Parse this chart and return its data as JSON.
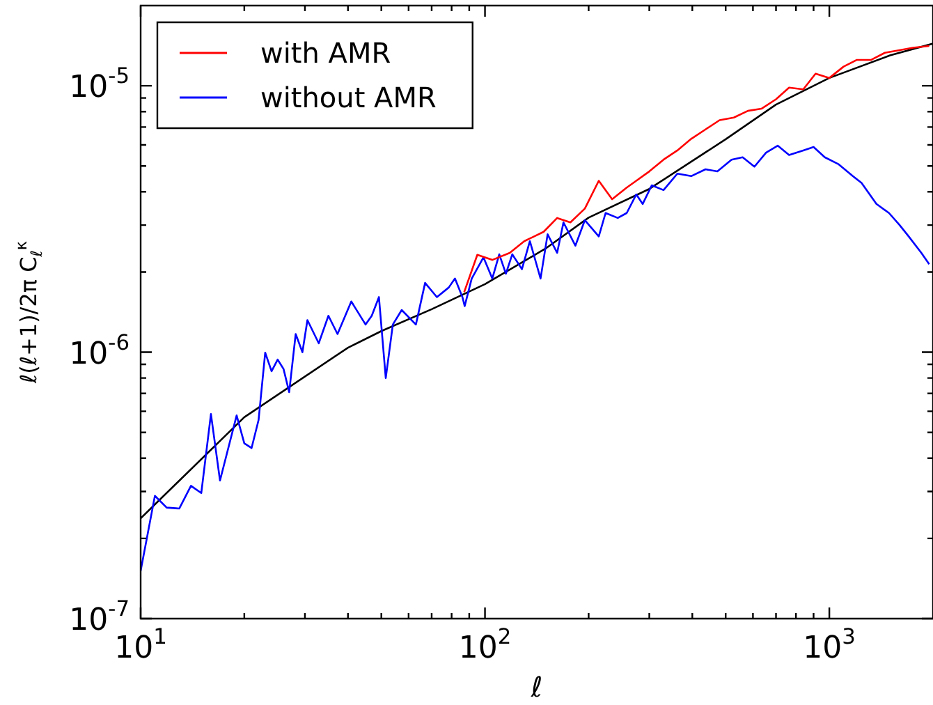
{
  "chart_data": {
    "type": "line",
    "xlabel": "ℓ",
    "ylabel": "ℓ(ℓ+1)/2π C$_{ℓ}$$^{κ}$",
    "log": "xy",
    "grid": false,
    "legend": "top left",
    "marker": "none",
    "line_style": "solid",
    "xlim": [
      10,
      2000
    ],
    "ylim": [
      1e-07,
      2e-05
    ],
    "xticks": [
      {
        "value": 10,
        "label": "10$^{1}$"
      },
      {
        "value": 20,
        "label": null
      },
      {
        "value": 30,
        "label": null
      },
      {
        "value": 40,
        "label": null
      },
      {
        "value": 50,
        "label": null
      },
      {
        "value": 60,
        "label": null
      },
      {
        "value": 70,
        "label": null
      },
      {
        "value": 80,
        "label": null
      },
      {
        "value": 90,
        "label": null
      },
      {
        "value": 100,
        "label": "10$^{2}$"
      },
      {
        "value": 200,
        "label": null
      },
      {
        "value": 300,
        "label": null
      },
      {
        "value": 400,
        "label": null
      },
      {
        "value": 500,
        "label": null
      },
      {
        "value": 600,
        "label": null
      },
      {
        "value": 700,
        "label": null
      },
      {
        "value": 800,
        "label": null
      },
      {
        "value": 900,
        "label": null
      },
      {
        "value": 1000,
        "label": "10$^{3}$"
      }
    ],
    "yticks": [
      {
        "value": 1e-07,
        "label": "10$^{-7}$"
      },
      {
        "value": 2e-07,
        "label": null
      },
      {
        "value": 3e-07,
        "label": null
      },
      {
        "value": 4e-07,
        "label": null
      },
      {
        "value": 5e-07,
        "label": null
      },
      {
        "value": 6e-07,
        "label": null
      },
      {
        "value": 7e-07,
        "label": null
      },
      {
        "value": 8e-07,
        "label": null
      },
      {
        "value": 9e-07,
        "label": null
      },
      {
        "value": 1e-06,
        "label": "10$^{-6}$"
      },
      {
        "value": 2e-06,
        "label": null
      },
      {
        "value": 3e-06,
        "label": null
      },
      {
        "value": 4e-06,
        "label": null
      },
      {
        "value": 5e-06,
        "label": null
      },
      {
        "value": 6e-06,
        "label": null
      },
      {
        "value": 7e-06,
        "label": null
      },
      {
        "value": 8e-06,
        "label": null
      },
      {
        "value": 9e-06,
        "label": null
      },
      {
        "value": 1e-05,
        "label": "10$^{-5}$"
      }
    ],
    "series": [
      {
        "name": "with AMR",
        "color": "#ff0000",
        "x": [
          87,
          95,
          105,
          118,
          130,
          148,
          162,
          177,
          195,
          214,
          234,
          258,
          275,
          300,
          330,
          362,
          397,
          437,
          480,
          528,
          580,
          635,
          700,
          764,
          840,
          912,
          1000,
          1100,
          1200,
          1320,
          1450,
          1600,
          1750,
          1950
        ],
        "values": [
          1.68e-06,
          2.32e-06,
          2.22e-06,
          2.36e-06,
          2.61e-06,
          2.83e-06,
          3.19e-06,
          3.07e-06,
          3.46e-06,
          4.4e-06,
          3.75e-06,
          4.15e-06,
          4.4e-06,
          4.77e-06,
          5.28e-06,
          5.72e-06,
          6.32e-06,
          6.86e-06,
          7.43e-06,
          7.6e-06,
          8.05e-06,
          8.2e-06,
          8.9e-06,
          9.84e-06,
          9.7e-06,
          1.11e-05,
          1.07e-05,
          1.18e-05,
          1.25e-05,
          1.25e-05,
          1.33e-05,
          1.36e-05,
          1.39e-05,
          1.41e-05
        ]
      },
      {
        "name": "without AMR",
        "color": "#0000ff",
        "x": [
          10,
          11,
          11.9,
          12.95,
          14,
          15,
          16,
          17,
          19,
          20,
          21,
          22,
          23,
          24,
          25,
          26,
          27,
          28.2,
          29.5,
          30.5,
          32.9,
          35.1,
          37.3,
          40.9,
          45,
          46.9,
          49.2,
          51.5,
          54,
          57.3,
          63,
          67,
          72.5,
          78.5,
          81.8,
          86,
          87.3,
          91.5,
          99,
          105,
          110,
          115,
          120,
          128,
          135,
          145,
          152,
          162,
          169,
          183,
          195,
          214,
          224,
          243,
          258,
          275,
          287,
          305,
          330,
          362,
          397,
          437,
          473,
          520,
          560,
          606,
          655,
          708,
          764,
          840,
          900,
          970,
          1065,
          1170,
          1240,
          1370,
          1490,
          1600,
          1700,
          1850,
          1950
        ],
        "values": [
          1.51e-07,
          2.89e-07,
          2.61e-07,
          2.59e-07,
          3.15e-07,
          2.96e-07,
          5.86e-07,
          3.3e-07,
          5.79e-07,
          4.55e-07,
          4.37e-07,
          5.56e-07,
          9.96e-07,
          8.48e-07,
          9.38e-07,
          8.65e-07,
          7.08e-07,
          1.17e-06,
          1e-06,
          1.32e-06,
          1.08e-06,
          1.37e-06,
          1.17e-06,
          1.55e-06,
          1.27e-06,
          1.37e-06,
          1.61e-06,
          8e-07,
          1.27e-06,
          1.44e-06,
          1.27e-06,
          1.82e-06,
          1.61e-06,
          1.75e-06,
          1.89e-06,
          1.61e-06,
          1.49e-06,
          1.89e-06,
          2.27e-06,
          1.89e-06,
          2.33e-06,
          1.97e-06,
          2.33e-06,
          2.05e-06,
          2.61e-06,
          1.89e-06,
          2.77e-06,
          2.36e-06,
          3.07e-06,
          2.51e-06,
          3.13e-06,
          2.72e-06,
          3.33e-06,
          3.19e-06,
          3.33e-06,
          3.91e-06,
          3.6e-06,
          4.23e-06,
          4.06e-06,
          4.68e-06,
          4.58e-06,
          4.86e-06,
          4.77e-06,
          5.28e-06,
          5.39e-06,
          4.97e-06,
          5.61e-06,
          5.96e-06,
          5.5e-06,
          5.72e-06,
          5.89e-06,
          5.39e-06,
          5.07e-06,
          4.58e-06,
          4.32e-06,
          3.6e-06,
          3.33e-06,
          3e-06,
          2.72e-06,
          2.36e-06,
          2.14e-06
        ]
      },
      {
        "color": "#000000",
        "x": [
          10,
          20,
          40,
          50,
          70,
          100,
          150,
          200,
          300,
          500,
          700,
          1000,
          1500,
          2000
        ],
        "values": [
          2.38e-07,
          5.7e-07,
          1.04e-06,
          1.2e-06,
          1.45e-06,
          1.8e-06,
          2.45e-06,
          3.2e-06,
          4.1e-06,
          6.3e-06,
          8.5e-06,
          1.07e-05,
          1.3e-05,
          1.44e-05
        ]
      }
    ]
  }
}
